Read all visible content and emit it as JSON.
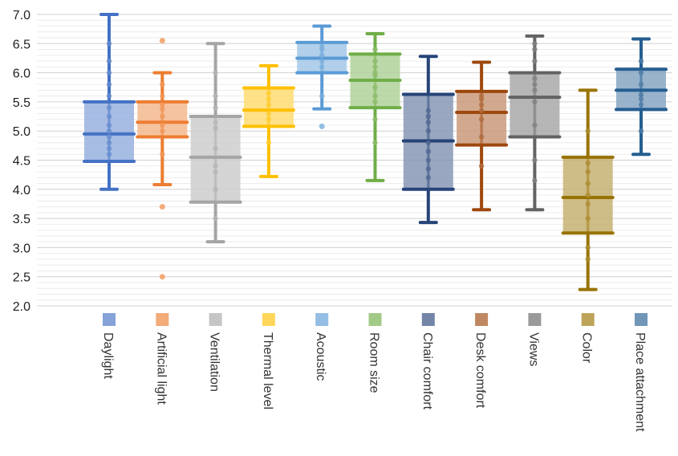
{
  "chart_data": {
    "type": "box",
    "title": "",
    "xlabel": "",
    "ylabel": "",
    "ylim": [
      2.0,
      7.0
    ],
    "yticks": [
      "2.0",
      "2.5",
      "3.0",
      "3.5",
      "4.0",
      "4.5",
      "5.0",
      "5.5",
      "6.0",
      "6.5",
      "7.0"
    ],
    "grid": true,
    "legend": "bottom, one marker per category",
    "categories": [
      "Daylight",
      "Artificial light",
      "Ventilation",
      "Thermal level",
      "Acoustic",
      "Room size",
      "Chair comfort",
      "Desk comfort",
      "Views",
      "Color",
      "Place attachment"
    ],
    "series": [
      {
        "category": "Daylight",
        "color": "#4472c4",
        "min": 4.0,
        "q1": 4.48,
        "median": 4.95,
        "q3": 5.5,
        "max": 7.0,
        "points": [
          4.6,
          4.7,
          4.8,
          4.9,
          5.0,
          5.1,
          5.25,
          5.4,
          5.6,
          5.8,
          6.0,
          6.2,
          6.5
        ]
      },
      {
        "category": "Artificial light",
        "color": "#ed7d31",
        "min": 4.08,
        "q1": 4.9,
        "median": 5.15,
        "q3": 5.5,
        "max": 6.0,
        "points": [
          4.6,
          5.0,
          5.1,
          5.25,
          5.38,
          5.45,
          5.6,
          5.8
        ],
        "outliers": [
          6.55,
          3.7,
          2.5
        ]
      },
      {
        "category": "Ventilation",
        "color": "#a5a5a5",
        "min": 3.1,
        "q1": 3.78,
        "median": 4.55,
        "q3": 5.25,
        "max": 6.5,
        "points": [
          3.5,
          4.0,
          4.3,
          4.4,
          4.7,
          5.05,
          5.15,
          5.4,
          5.6,
          6.0
        ]
      },
      {
        "category": "Thermal level",
        "color": "#ffc000",
        "min": 4.22,
        "q1": 5.08,
        "median": 5.36,
        "q3": 5.74,
        "max": 6.12,
        "points": [
          4.8,
          5.2,
          5.3,
          5.45,
          5.55,
          5.65
        ]
      },
      {
        "category": "Acoustic",
        "color": "#5b9bd5",
        "min": 5.38,
        "q1": 6.0,
        "median": 6.25,
        "q3": 6.52,
        "max": 6.8,
        "points": [
          5.6,
          6.1,
          6.2,
          6.3,
          6.4,
          6.45
        ],
        "outliers": [
          5.08
        ]
      },
      {
        "category": "Room size",
        "color": "#70ad47",
        "min": 4.15,
        "q1": 5.4,
        "median": 5.87,
        "q3": 6.32,
        "max": 6.67,
        "points": [
          4.8,
          5.2,
          5.5,
          5.6,
          5.75,
          5.95,
          6.0,
          6.1,
          6.2,
          6.4
        ]
      },
      {
        "category": "Chair comfort",
        "color": "#264478",
        "min": 3.43,
        "q1": 4.0,
        "median": 4.83,
        "q3": 5.63,
        "max": 6.28,
        "points": [
          4.2,
          4.35,
          4.5,
          4.65,
          4.8,
          5.0,
          5.15,
          5.25,
          5.35
        ]
      },
      {
        "category": "Desk comfort",
        "color": "#9e480e",
        "min": 3.65,
        "q1": 4.76,
        "median": 5.32,
        "q3": 5.68,
        "max": 6.18,
        "points": [
          4.4,
          4.9,
          5.2,
          5.35,
          5.45,
          5.55,
          5.6
        ]
      },
      {
        "category": "Views",
        "color": "#636363",
        "min": 3.65,
        "q1": 4.9,
        "median": 5.58,
        "q3": 6.0,
        "max": 6.63,
        "points": [
          4.15,
          4.5,
          5.1,
          5.5,
          5.7,
          5.8,
          5.9,
          6.2,
          6.4,
          6.5
        ]
      },
      {
        "category": "Color",
        "color": "#997300",
        "min": 2.28,
        "q1": 3.25,
        "median": 3.86,
        "q3": 4.55,
        "max": 5.7,
        "points": [
          2.8,
          3.0,
          3.5,
          3.75,
          3.9,
          4.1,
          4.3,
          4.45,
          5.0
        ]
      },
      {
        "category": "Place attachment",
        "color": "#255e91",
        "min": 4.6,
        "q1": 5.37,
        "median": 5.7,
        "q3": 6.06,
        "max": 6.58,
        "points": [
          5.0,
          5.45,
          5.55,
          5.62,
          5.8,
          6.0,
          6.2
        ]
      }
    ]
  }
}
